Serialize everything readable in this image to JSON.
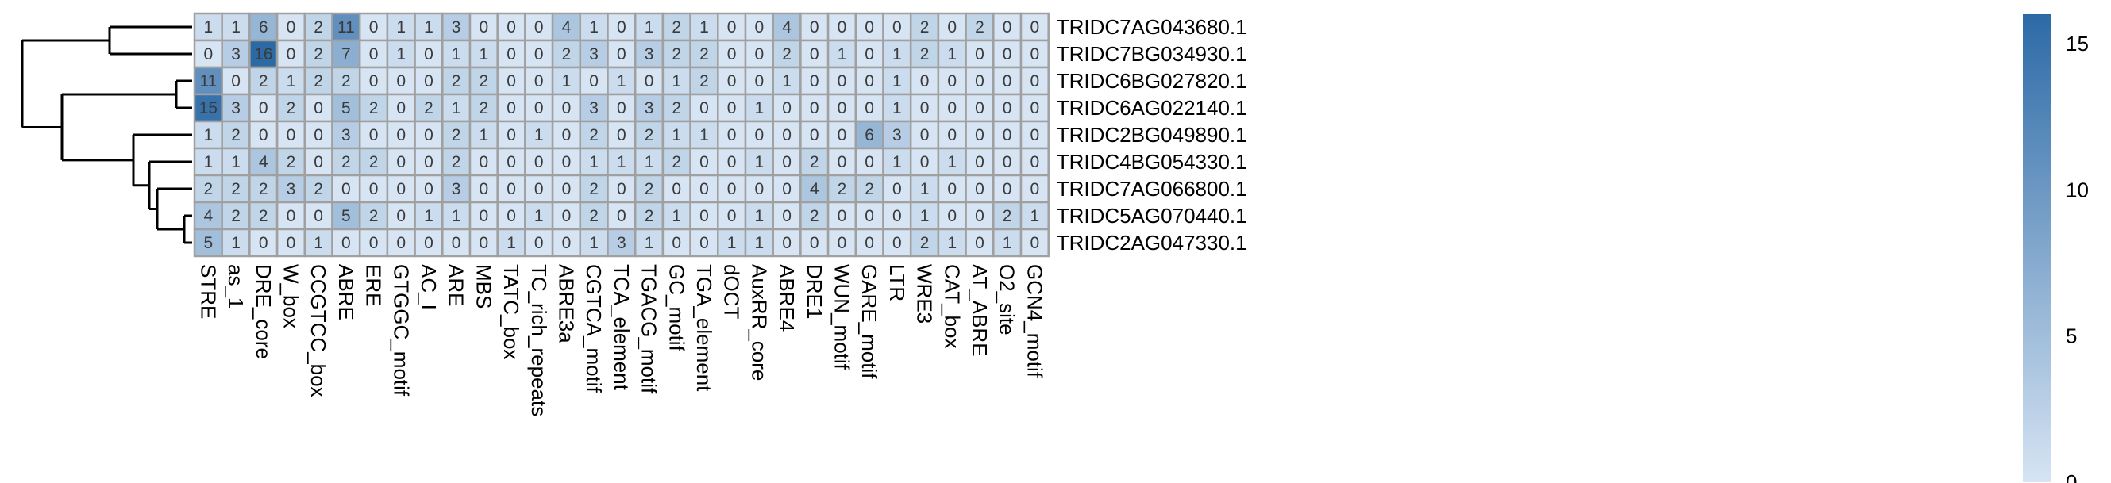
{
  "chart_data": {
    "type": "heatmap",
    "title": "",
    "xlabel": "",
    "ylabel": "",
    "rows": [
      "TRIDC7AG043680.1",
      "TRIDC7BG034930.1",
      "TRIDC6BG027820.1",
      "TRIDC6AG022140.1",
      "TRIDC2BG049890.1",
      "TRIDC4BG054330.1",
      "TRIDC7AG066800.1",
      "TRIDC5AG070440.1",
      "TRIDC2AG047330.1"
    ],
    "columns": [
      "STRE",
      "as_1",
      "DRE_core",
      "W_box",
      "CCGTCC_box",
      "ABRE",
      "ERE",
      "GTGGC_motif",
      "AC_I",
      "ARE",
      "MBS",
      "TATC_box",
      "TC_rich_repeats",
      "ABRE3a",
      "CGTCA_motif",
      "TCA_element",
      "TGACG_motif",
      "GC_motif",
      "TGA_element",
      "dOCT",
      "AuxRR_core",
      "ABRE4",
      "DRE1",
      "WUN_motif",
      "GARE_motif",
      "LTR",
      "WRE3",
      "CAT_box",
      "AT_ABRE",
      "O2_site",
      "GCN4_motif"
    ],
    "values": [
      [
        1,
        1,
        6,
        0,
        2,
        11,
        0,
        1,
        1,
        3,
        0,
        0,
        0,
        4,
        1,
        0,
        1,
        2,
        1,
        0,
        0,
        4,
        0,
        0,
        0,
        0,
        2,
        0,
        2,
        0,
        0
      ],
      [
        0,
        3,
        16,
        0,
        2,
        7,
        0,
        1,
        0,
        1,
        1,
        0,
        0,
        2,
        3,
        0,
        3,
        2,
        2,
        0,
        0,
        2,
        0,
        1,
        0,
        1,
        2,
        1,
        0,
        0,
        0
      ],
      [
        11,
        0,
        2,
        1,
        2,
        2,
        0,
        0,
        0,
        2,
        2,
        0,
        0,
        1,
        0,
        1,
        0,
        1,
        2,
        0,
        0,
        1,
        0,
        0,
        0,
        1,
        0,
        0,
        0,
        0,
        0
      ],
      [
        15,
        3,
        0,
        2,
        0,
        5,
        2,
        0,
        2,
        1,
        2,
        0,
        0,
        0,
        3,
        0,
        3,
        2,
        0,
        0,
        1,
        0,
        0,
        0,
        0,
        1,
        0,
        0,
        0,
        0,
        0
      ],
      [
        1,
        2,
        0,
        0,
        0,
        3,
        0,
        0,
        0,
        2,
        1,
        0,
        1,
        0,
        2,
        0,
        2,
        1,
        1,
        0,
        0,
        0,
        0,
        0,
        6,
        3,
        0,
        0,
        0,
        0,
        0
      ],
      [
        1,
        1,
        4,
        2,
        0,
        2,
        2,
        0,
        0,
        2,
        0,
        0,
        0,
        0,
        1,
        1,
        1,
        2,
        0,
        0,
        1,
        0,
        2,
        0,
        0,
        1,
        0,
        1,
        0,
        0,
        0
      ],
      [
        2,
        2,
        2,
        3,
        2,
        0,
        0,
        0,
        0,
        3,
        0,
        0,
        0,
        0,
        2,
        0,
        2,
        0,
        0,
        0,
        0,
        0,
        4,
        2,
        2,
        0,
        1,
        0,
        0,
        0,
        0
      ],
      [
        4,
        2,
        2,
        0,
        0,
        5,
        2,
        0,
        1,
        1,
        0,
        0,
        1,
        0,
        2,
        0,
        2,
        1,
        0,
        0,
        1,
        0,
        2,
        0,
        0,
        0,
        1,
        0,
        0,
        2,
        1
      ],
      [
        5,
        1,
        0,
        0,
        1,
        0,
        0,
        0,
        0,
        0,
        0,
        1,
        0,
        0,
        1,
        3,
        1,
        0,
        0,
        1,
        1,
        0,
        0,
        0,
        0,
        0,
        2,
        1,
        0,
        1,
        0
      ]
    ],
    "color_range": [
      0,
      16
    ],
    "colorbar": {
      "ticks": [
        0,
        5,
        10,
        15
      ],
      "low_color": "#d6e4f3",
      "high_color": "#2c6aa6"
    },
    "grid_color": "#a0a0a0",
    "dendrogram": "rows, left",
    "legend": "right"
  }
}
